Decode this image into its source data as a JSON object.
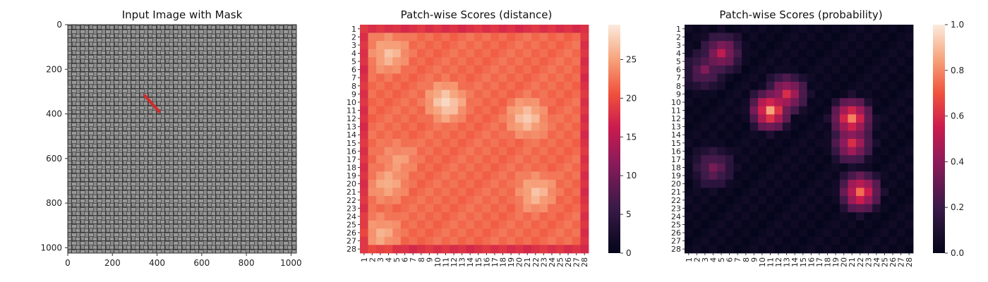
{
  "chart_data": [
    {
      "type": "image",
      "title": "Input Image with Mask",
      "xlim": [
        0,
        1024
      ],
      "ylim": [
        1024,
        0
      ],
      "xticks": [
        0,
        200,
        400,
        600,
        800,
        1000
      ],
      "yticks": [
        0,
        200,
        400,
        600,
        800,
        1000
      ],
      "mask_segment": {
        "x": [
          345,
          410
        ],
        "y": [
          318,
          390
        ]
      }
    },
    {
      "type": "heatmap",
      "title": "Patch-wise Scores (distance)",
      "x_labels": [
        "1",
        "2",
        "3",
        "4",
        "5",
        "6",
        "7",
        "8",
        "9",
        "10",
        "11",
        "12",
        "13",
        "14",
        "15",
        "16",
        "17",
        "18",
        "19",
        "20",
        "21",
        "22",
        "23",
        "24",
        "25",
        "26",
        "27",
        "28"
      ],
      "y_labels": [
        "1",
        "2",
        "3",
        "4",
        "5",
        "6",
        "7",
        "8",
        "9",
        "10",
        "11",
        "12",
        "13",
        "14",
        "15",
        "16",
        "17",
        "18",
        "19",
        "20",
        "21",
        "22",
        "23",
        "24",
        "25",
        "26",
        "27",
        "28"
      ],
      "colorbar": {
        "range": [
          0,
          29.5
        ],
        "ticks": [
          0,
          5,
          10,
          15,
          20,
          25
        ]
      },
      "colormap": "rocket",
      "description_values": {
        "base": 22,
        "edge": 18,
        "hotspots": [
          {
            "row": 10,
            "col": 11,
            "value": 29
          },
          {
            "row": 12,
            "col": 21,
            "value": 28
          },
          {
            "row": 4,
            "col": 4,
            "value": 27
          },
          {
            "row": 21,
            "col": 22,
            "value": 27
          },
          {
            "row": 20,
            "col": 4,
            "value": 26
          },
          {
            "row": 26,
            "col": 3,
            "value": 26
          },
          {
            "row": 17,
            "col": 5,
            "value": 25
          }
        ]
      }
    },
    {
      "type": "heatmap",
      "title": "Patch-wise Scores (probability)",
      "x_labels": [
        "1",
        "2",
        "3",
        "4",
        "5",
        "6",
        "7",
        "8",
        "9",
        "10",
        "11",
        "12",
        "13",
        "14",
        "15",
        "16",
        "17",
        "18",
        "19",
        "20",
        "21",
        "22",
        "23",
        "24",
        "25",
        "26",
        "27",
        "28"
      ],
      "y_labels": [
        "1",
        "2",
        "3",
        "4",
        "5",
        "6",
        "7",
        "8",
        "9",
        "10",
        "11",
        "12",
        "13",
        "14",
        "15",
        "16",
        "17",
        "18",
        "19",
        "20",
        "21",
        "22",
        "23",
        "24",
        "25",
        "26",
        "27",
        "28"
      ],
      "colorbar": {
        "range": [
          0,
          1.0
        ],
        "ticks": [
          "0.0",
          "0.2",
          "0.4",
          "0.6",
          "0.8",
          "1.0"
        ]
      },
      "colormap": "rocket",
      "description_values": {
        "base": 0.03,
        "hotspots": [
          {
            "row": 11,
            "col": 11,
            "value": 0.85
          },
          {
            "row": 12,
            "col": 21,
            "value": 0.8
          },
          {
            "row": 21,
            "col": 22,
            "value": 0.75
          },
          {
            "row": 15,
            "col": 21,
            "value": 0.6
          },
          {
            "row": 4,
            "col": 5,
            "value": 0.5
          },
          {
            "row": 9,
            "col": 13,
            "value": 0.6
          },
          {
            "row": 6,
            "col": 3,
            "value": 0.35
          },
          {
            "row": 18,
            "col": 4,
            "value": 0.35
          }
        ]
      }
    }
  ]
}
